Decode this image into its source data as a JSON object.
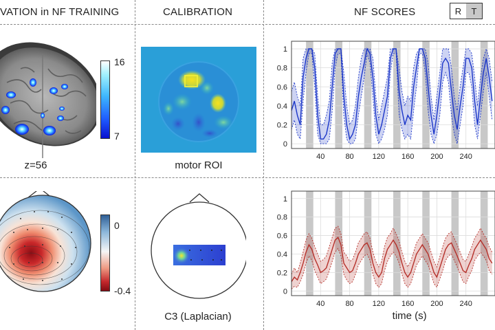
{
  "headers": {
    "activation": "VATION in NF TRAINING",
    "calibration": "CALIBRATION",
    "scores": "NF SCORES"
  },
  "legend_box": {
    "r_label": "R",
    "t_label": "T"
  },
  "fmri": {
    "slice_label": "z=56",
    "colorbar_max": "16",
    "colorbar_min": "7"
  },
  "eeg": {
    "colorbar_max": "0",
    "colorbar_min": "-0.4"
  },
  "calibration": {
    "fmri_label": "motor ROI",
    "eeg_label": "C3 (Laplacian)"
  },
  "colors": {
    "fmri_series": "#1a35c8",
    "eeg_series": "#b5302a",
    "task_block": "#c8c8c8"
  },
  "chart_data": [
    {
      "type": "line",
      "name": "fmri-nf-scores",
      "xlim": [
        0,
        280
      ],
      "ylim": [
        -0.05,
        1.08
      ],
      "yticks": [
        0,
        0.2,
        0.4,
        0.6,
        0.8,
        1
      ],
      "ytick_labels": [
        "0",
        "0.2",
        "0.4",
        "0.6",
        "0.8",
        "1"
      ],
      "xticks": [
        40,
        80,
        120,
        160,
        200,
        240
      ],
      "xtick_labels": [
        "40",
        "80",
        "120",
        "160",
        "200",
        "240"
      ],
      "task_blocks": [
        [
          20,
          30
        ],
        [
          60,
          70
        ],
        [
          100,
          110
        ],
        [
          140,
          150
        ],
        [
          180,
          190
        ],
        [
          220,
          230
        ],
        [
          260,
          270
        ]
      ],
      "x": [
        0,
        4,
        8,
        12,
        16,
        20,
        24,
        28,
        32,
        36,
        40,
        44,
        48,
        52,
        56,
        60,
        64,
        68,
        72,
        76,
        80,
        84,
        88,
        92,
        96,
        100,
        104,
        108,
        112,
        116,
        120,
        124,
        128,
        132,
        136,
        140,
        144,
        148,
        152,
        156,
        160,
        164,
        168,
        172,
        176,
        180,
        184,
        188,
        192,
        196,
        200,
        204,
        208,
        212,
        216,
        220,
        224,
        228,
        232,
        236,
        240,
        244,
        248,
        252,
        256,
        260,
        264,
        268,
        272,
        276
      ],
      "mean": [
        0.35,
        0.45,
        0.3,
        0.2,
        0.7,
        0.9,
        1.0,
        1.0,
        0.8,
        0.3,
        0.05,
        0.05,
        0.1,
        0.25,
        0.6,
        0.95,
        1.0,
        1.0,
        0.5,
        0.2,
        0.05,
        0.1,
        0.2,
        0.5,
        0.7,
        0.85,
        1.0,
        0.95,
        0.7,
        0.3,
        0.1,
        0.2,
        0.35,
        0.5,
        0.9,
        1.0,
        1.0,
        0.55,
        0.35,
        0.2,
        0.3,
        0.25,
        0.6,
        0.8,
        1.0,
        1.0,
        0.9,
        0.6,
        0.3,
        0.1,
        0.3,
        0.55,
        0.85,
        0.9,
        0.85,
        0.55,
        0.3,
        0.15,
        0.4,
        0.6,
        0.9,
        0.9,
        0.8,
        0.45,
        0.2,
        0.5,
        0.75,
        0.9,
        0.7,
        0.45
      ],
      "lower": [
        0.15,
        0.25,
        0.1,
        0.05,
        0.45,
        0.75,
        0.95,
        0.95,
        0.6,
        0.1,
        0.0,
        0.0,
        0.0,
        0.05,
        0.35,
        0.8,
        0.95,
        0.95,
        0.3,
        0.05,
        0.0,
        0.0,
        0.05,
        0.3,
        0.5,
        0.7,
        0.95,
        0.85,
        0.5,
        0.1,
        0.0,
        0.05,
        0.15,
        0.3,
        0.75,
        0.95,
        0.95,
        0.3,
        0.15,
        0.05,
        0.1,
        0.05,
        0.35,
        0.6,
        0.95,
        0.95,
        0.75,
        0.35,
        0.1,
        0.0,
        0.1,
        0.3,
        0.65,
        0.75,
        0.65,
        0.3,
        0.1,
        0.0,
        0.2,
        0.4,
        0.75,
        0.75,
        0.6,
        0.2,
        0.05,
        0.3,
        0.55,
        0.75,
        0.5,
        0.25
      ],
      "upper": [
        0.55,
        0.65,
        0.5,
        0.4,
        0.9,
        1.0,
        1.0,
        1.0,
        0.95,
        0.5,
        0.2,
        0.2,
        0.3,
        0.45,
        0.85,
        1.0,
        1.0,
        1.0,
        0.75,
        0.4,
        0.2,
        0.25,
        0.4,
        0.7,
        0.9,
        1.0,
        1.0,
        1.0,
        0.9,
        0.5,
        0.25,
        0.4,
        0.55,
        0.7,
        1.0,
        1.0,
        1.0,
        0.8,
        0.55,
        0.4,
        0.5,
        0.45,
        0.8,
        0.95,
        1.0,
        1.0,
        1.0,
        0.85,
        0.5,
        0.25,
        0.5,
        0.75,
        1.0,
        1.0,
        1.0,
        0.8,
        0.5,
        0.35,
        0.6,
        0.8,
        1.0,
        1.0,
        0.95,
        0.7,
        0.4,
        0.7,
        0.9,
        1.0,
        0.9,
        0.65
      ]
    },
    {
      "type": "line",
      "name": "eeg-nf-scores",
      "xlim": [
        0,
        280
      ],
      "ylim": [
        -0.05,
        1.08
      ],
      "yticks": [
        0,
        0.2,
        0.4,
        0.6,
        0.8,
        1
      ],
      "ytick_labels": [
        "0",
        "0.2",
        "0.4",
        "0.6",
        "0.8",
        "1"
      ],
      "xticks": [
        40,
        80,
        120,
        160,
        200,
        240
      ],
      "xtick_labels": [
        "40",
        "80",
        "120",
        "160",
        "200",
        "240"
      ],
      "xlabel": "time (s)",
      "task_blocks": [
        [
          20,
          30
        ],
        [
          60,
          70
        ],
        [
          100,
          110
        ],
        [
          140,
          150
        ],
        [
          180,
          190
        ],
        [
          220,
          230
        ],
        [
          260,
          270
        ]
      ],
      "x": [
        0,
        4,
        8,
        12,
        16,
        20,
        24,
        28,
        32,
        36,
        40,
        44,
        48,
        52,
        56,
        60,
        64,
        68,
        72,
        76,
        80,
        84,
        88,
        92,
        96,
        100,
        104,
        108,
        112,
        116,
        120,
        124,
        128,
        132,
        136,
        140,
        144,
        148,
        152,
        156,
        160,
        164,
        168,
        172,
        176,
        180,
        184,
        188,
        192,
        196,
        200,
        204,
        208,
        212,
        216,
        220,
        224,
        228,
        232,
        236,
        240,
        244,
        248,
        252,
        256,
        260,
        264,
        268,
        272,
        276
      ],
      "mean": [
        0.1,
        0.15,
        0.12,
        0.2,
        0.3,
        0.42,
        0.5,
        0.45,
        0.35,
        0.28,
        0.2,
        0.22,
        0.25,
        0.35,
        0.45,
        0.55,
        0.58,
        0.5,
        0.3,
        0.25,
        0.2,
        0.22,
        0.3,
        0.4,
        0.45,
        0.5,
        0.52,
        0.45,
        0.3,
        0.2,
        0.15,
        0.2,
        0.35,
        0.45,
        0.5,
        0.55,
        0.5,
        0.42,
        0.3,
        0.2,
        0.15,
        0.2,
        0.3,
        0.4,
        0.45,
        0.5,
        0.45,
        0.4,
        0.3,
        0.2,
        0.15,
        0.25,
        0.35,
        0.45,
        0.5,
        0.52,
        0.45,
        0.38,
        0.3,
        0.22,
        0.2,
        0.28,
        0.35,
        0.45,
        0.5,
        0.55,
        0.5,
        0.45,
        0.35,
        0.3
      ],
      "lower": [
        0.02,
        0.05,
        0.04,
        0.1,
        0.18,
        0.3,
        0.38,
        0.33,
        0.22,
        0.15,
        0.08,
        0.1,
        0.13,
        0.22,
        0.32,
        0.42,
        0.46,
        0.38,
        0.18,
        0.12,
        0.08,
        0.1,
        0.18,
        0.28,
        0.33,
        0.38,
        0.4,
        0.33,
        0.18,
        0.08,
        0.04,
        0.08,
        0.22,
        0.32,
        0.38,
        0.42,
        0.38,
        0.3,
        0.18,
        0.08,
        0.04,
        0.08,
        0.18,
        0.28,
        0.33,
        0.38,
        0.33,
        0.28,
        0.18,
        0.08,
        0.04,
        0.13,
        0.22,
        0.33,
        0.38,
        0.4,
        0.33,
        0.26,
        0.18,
        0.1,
        0.08,
        0.16,
        0.22,
        0.33,
        0.38,
        0.42,
        0.38,
        0.33,
        0.22,
        0.18
      ],
      "upper": [
        0.18,
        0.25,
        0.2,
        0.3,
        0.42,
        0.55,
        0.62,
        0.57,
        0.48,
        0.4,
        0.32,
        0.34,
        0.38,
        0.48,
        0.58,
        0.68,
        0.7,
        0.62,
        0.42,
        0.38,
        0.32,
        0.34,
        0.42,
        0.52,
        0.57,
        0.62,
        0.64,
        0.57,
        0.42,
        0.32,
        0.26,
        0.32,
        0.48,
        0.58,
        0.62,
        0.68,
        0.62,
        0.54,
        0.42,
        0.32,
        0.26,
        0.32,
        0.42,
        0.52,
        0.57,
        0.62,
        0.57,
        0.52,
        0.42,
        0.32,
        0.26,
        0.37,
        0.48,
        0.57,
        0.62,
        0.64,
        0.57,
        0.5,
        0.42,
        0.34,
        0.32,
        0.4,
        0.48,
        0.57,
        0.62,
        0.68,
        0.62,
        0.57,
        0.48,
        0.42
      ]
    }
  ]
}
